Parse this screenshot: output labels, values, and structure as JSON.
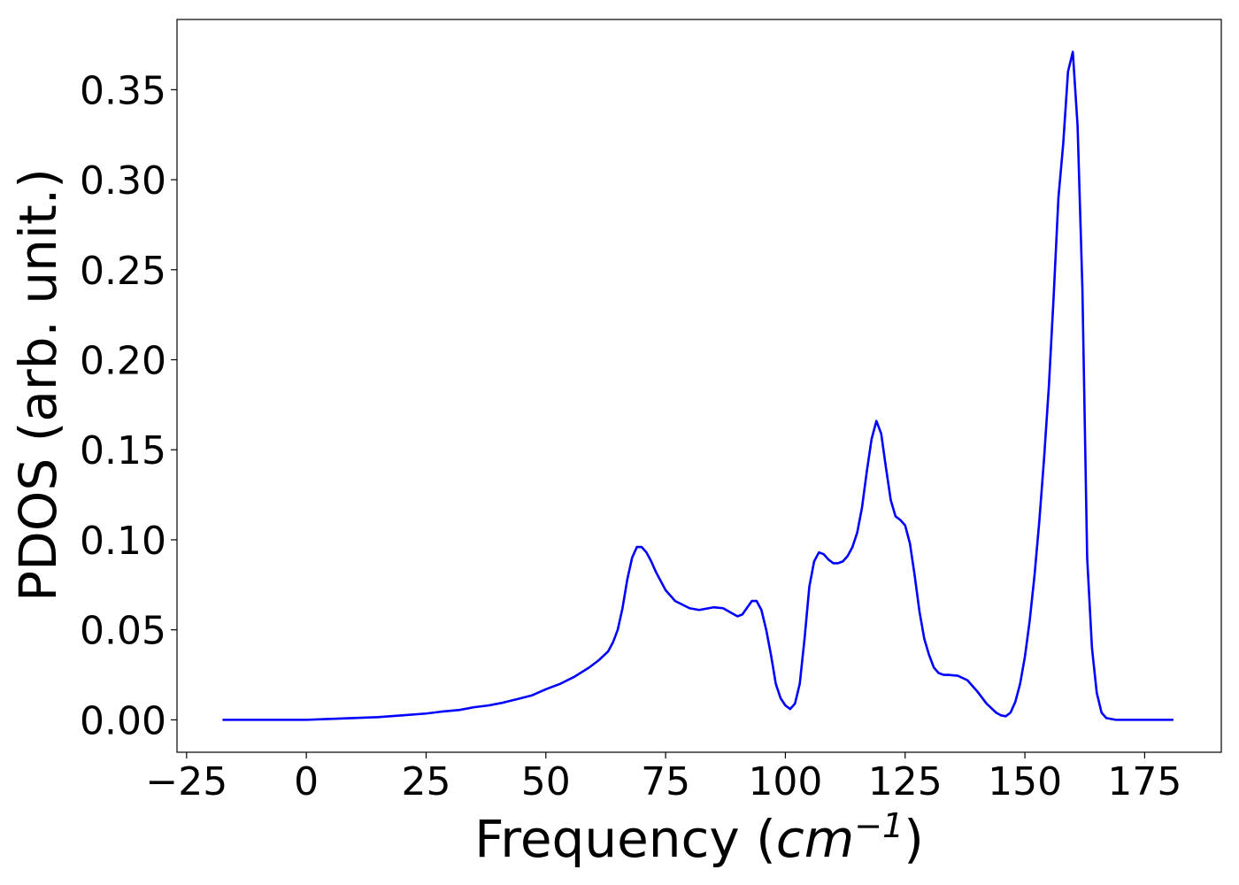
{
  "chart_data": {
    "type": "line",
    "title": "",
    "xlabel": "Frequency",
    "xlabel_unit_base": "cm",
    "xlabel_unit_exp": "−1",
    "ylabel": "PDOS (arb. unit.)",
    "xlim": [
      -27,
      191
    ],
    "ylim": [
      -0.018,
      0.389
    ],
    "xticks": [
      -25,
      0,
      25,
      50,
      75,
      100,
      125,
      150,
      175
    ],
    "xtick_labels": [
      "−25",
      "0",
      "25",
      "50",
      "75",
      "100",
      "125",
      "150",
      "175"
    ],
    "yticks": [
      0.0,
      0.05,
      0.1,
      0.15,
      0.2,
      0.25,
      0.3,
      0.35
    ],
    "ytick_labels": [
      "0.00",
      "0.05",
      "0.10",
      "0.15",
      "0.20",
      "0.25",
      "0.30",
      "0.35"
    ],
    "grid": false,
    "legend": "none",
    "series": [
      {
        "color": "#0000ff",
        "x": [
          -17.5,
          -10,
          0,
          5,
          10,
          15,
          20,
          25,
          28,
          30,
          32,
          35,
          38,
          41,
          44,
          47,
          50,
          53,
          56,
          59,
          61,
          63,
          64,
          65,
          66,
          67,
          68,
          69,
          70,
          71,
          72,
          73,
          75,
          77,
          80,
          82,
          85,
          87,
          89,
          90,
          91,
          93,
          94,
          95,
          96,
          97,
          98,
          99,
          100,
          101,
          102,
          103,
          104,
          105,
          106,
          107,
          108,
          109,
          110,
          111,
          112,
          113,
          114,
          115,
          116,
          117,
          118,
          119,
          120,
          121,
          122,
          123,
          124,
          125,
          126,
          127,
          128,
          129,
          130,
          131,
          132,
          133,
          134,
          136,
          138,
          140,
          142,
          144,
          145,
          146,
          147,
          148,
          149,
          150,
          151,
          152,
          153,
          154,
          155,
          156,
          157,
          158,
          159,
          160,
          161,
          162,
          163,
          164,
          165,
          166,
          167,
          168,
          169,
          170,
          175,
          181
        ],
        "y": [
          0.0,
          0.0,
          0.0,
          0.0005,
          0.001,
          0.0015,
          0.0025,
          0.0035,
          0.0045,
          0.005,
          0.0055,
          0.007,
          0.008,
          0.0095,
          0.0115,
          0.0135,
          0.017,
          0.02,
          0.024,
          0.029,
          0.033,
          0.038,
          0.043,
          0.05,
          0.062,
          0.078,
          0.09,
          0.096,
          0.096,
          0.093,
          0.088,
          0.082,
          0.072,
          0.066,
          0.062,
          0.061,
          0.0625,
          0.062,
          0.059,
          0.0575,
          0.0585,
          0.066,
          0.066,
          0.061,
          0.05,
          0.036,
          0.02,
          0.012,
          0.008,
          0.006,
          0.009,
          0.02,
          0.045,
          0.074,
          0.088,
          0.093,
          0.092,
          0.089,
          0.087,
          0.087,
          0.088,
          0.091,
          0.096,
          0.104,
          0.118,
          0.138,
          0.156,
          0.166,
          0.159,
          0.14,
          0.122,
          0.113,
          0.111,
          0.108,
          0.098,
          0.08,
          0.06,
          0.045,
          0.036,
          0.029,
          0.026,
          0.025,
          0.025,
          0.0245,
          0.022,
          0.016,
          0.009,
          0.004,
          0.0025,
          0.002,
          0.004,
          0.01,
          0.02,
          0.035,
          0.055,
          0.08,
          0.11,
          0.145,
          0.185,
          0.235,
          0.29,
          0.32,
          0.36,
          0.371,
          0.33,
          0.24,
          0.09,
          0.04,
          0.015,
          0.004,
          0.001,
          0.0005,
          0.0,
          0.0,
          0.0,
          0.0
        ]
      }
    ]
  }
}
